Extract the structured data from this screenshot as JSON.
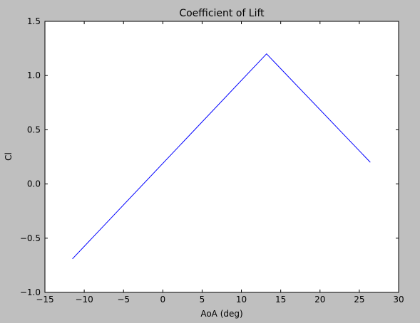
{
  "chart_data": {
    "type": "line",
    "title": "Coefficient of Lift",
    "xlabel": "AoA (deg)",
    "ylabel": "Cl",
    "xlim": [
      -15,
      30
    ],
    "ylim": [
      -1.0,
      1.5
    ],
    "xticks": [
      -15,
      -10,
      -5,
      0,
      5,
      10,
      15,
      20,
      25,
      30
    ],
    "xtick_labels": [
      "−15",
      "−10",
      "−5",
      "0",
      "5",
      "10",
      "15",
      "20",
      "25",
      "30"
    ],
    "yticks": [
      -1.0,
      -0.5,
      0.0,
      0.5,
      1.0,
      1.5
    ],
    "ytick_labels": [
      "−1.0",
      "−0.5",
      "0.0",
      "0.5",
      "1.0",
      "1.5"
    ],
    "grid": false,
    "series": [
      {
        "color": "#0000ff",
        "x": [
          -11.5,
          13.2,
          26.4
        ],
        "y": [
          -0.69,
          1.2,
          0.2
        ]
      }
    ]
  }
}
